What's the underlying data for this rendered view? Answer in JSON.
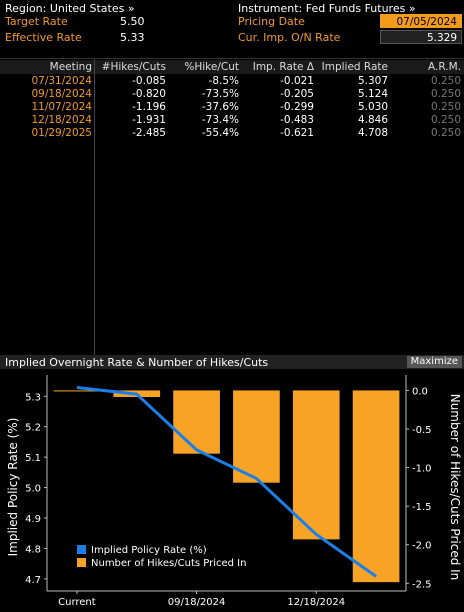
{
  "header": {
    "region_label": "Region: United States »",
    "instrument_label": "Instrument: Fed Funds Futures »",
    "target_rate_label": "Target Rate",
    "target_rate_value": "5.50",
    "effective_rate_label": "Effective Rate",
    "effective_rate_value": "5.33",
    "pricing_date_label": "Pricing Date",
    "pricing_date_value": "07/05/2024",
    "cur_imp_label": "Cur. Imp. O/N Rate",
    "cur_imp_value": "5.329"
  },
  "table": {
    "columns": [
      "Meeting",
      "#Hikes/Cuts",
      "%Hike/Cut",
      "Imp. Rate Δ",
      "Implied Rate",
      "A.R.M."
    ],
    "rows": [
      {
        "meeting": "07/31/2024",
        "hikes": "-0.085",
        "pct": "-8.5%",
        "delta": "-0.021",
        "implied": "5.307",
        "arm": "0.250"
      },
      {
        "meeting": "09/18/2024",
        "hikes": "-0.820",
        "pct": "-73.5%",
        "delta": "-0.205",
        "implied": "5.124",
        "arm": "0.250"
      },
      {
        "meeting": "11/07/2024",
        "hikes": "-1.196",
        "pct": "-37.6%",
        "delta": "-0.299",
        "implied": "5.030",
        "arm": "0.250"
      },
      {
        "meeting": "12/18/2024",
        "hikes": "-1.931",
        "pct": "-73.4%",
        "delta": "-0.483",
        "implied": "4.846",
        "arm": "0.250"
      },
      {
        "meeting": "01/29/2025",
        "hikes": "-2.485",
        "pct": "-55.4%",
        "delta": "-0.621",
        "implied": "4.708",
        "arm": "0.250"
      }
    ]
  },
  "chart_panel": {
    "title": "Implied Overnight Rate & Number of Hikes/Cuts",
    "maximize_label": "Maximize"
  },
  "chart_data": {
    "type": "bar",
    "categories": [
      "Current",
      "07/31/2024",
      "09/18/2024",
      "11/07/2024",
      "12/18/2024",
      "01/29/2025"
    ],
    "x_tick_labels": [
      "Current",
      "09/18/2024",
      "12/18/2024"
    ],
    "series": [
      {
        "name": "Implied Policy Rate (%)",
        "type": "line",
        "axis": "left",
        "color": "#1a7fe8",
        "values": [
          5.329,
          5.307,
          5.124,
          5.03,
          4.846,
          4.708
        ]
      },
      {
        "name": "Number of Hikes/Cuts Priced In",
        "type": "bar",
        "axis": "right",
        "color": "#f7a326",
        "values": [
          0,
          -0.085,
          -0.82,
          -1.196,
          -1.931,
          -2.485
        ]
      }
    ],
    "ylabel": "Implied Policy Rate (%)",
    "y2label": "Number of Hikes/Cuts Priced In",
    "ylim": [
      4.66,
      5.37
    ],
    "y2lim": [
      -2.6,
      0.2
    ],
    "yticks": [
      "5.3",
      "5.2",
      "5.1",
      "5.0",
      "4.9",
      "4.8",
      "4.7"
    ],
    "y2ticks": [
      "0.0",
      "-0.5",
      "-1.0",
      "-1.5",
      "-2.0",
      "-2.5"
    ],
    "legend": "bottom-left",
    "grid": false
  }
}
